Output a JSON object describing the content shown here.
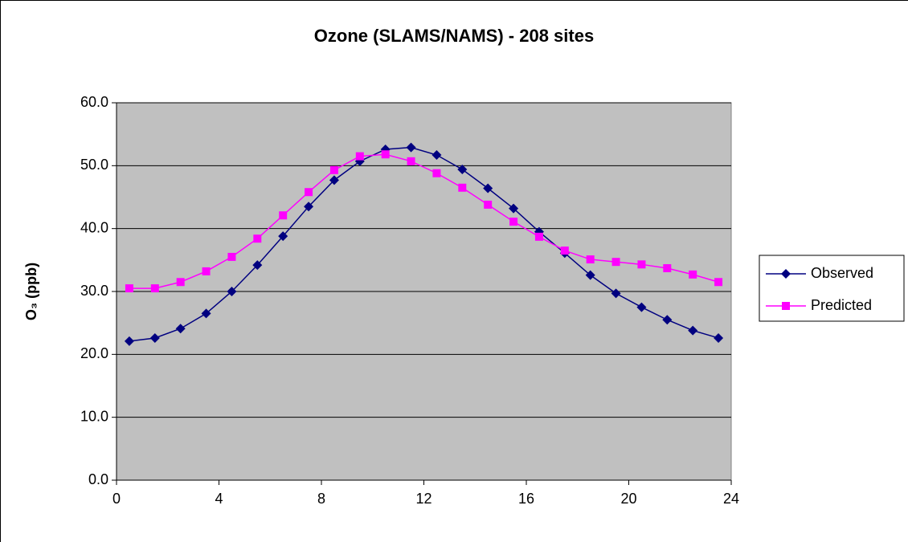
{
  "chart_data": {
    "type": "line",
    "title": "Ozone (SLAMS/NAMS) - 208 sites",
    "y_label": "O₃ (ppb)",
    "x": [
      0.5,
      1.5,
      2.5,
      3.5,
      4.5,
      5.5,
      6.5,
      7.5,
      8.5,
      9.5,
      10.5,
      11.5,
      12.5,
      13.5,
      14.5,
      15.5,
      16.5,
      17.5,
      18.5,
      19.5,
      20.5,
      21.5,
      22.5,
      23.5
    ],
    "series": [
      {
        "name": "Observed",
        "color": "#000080",
        "marker": "diamond",
        "values": [
          22.1,
          22.6,
          24.1,
          26.5,
          30.0,
          34.2,
          38.8,
          43.5,
          47.7,
          50.7,
          52.6,
          52.9,
          51.7,
          49.4,
          46.4,
          43.2,
          39.5,
          36.1,
          32.6,
          29.7,
          27.5,
          25.5,
          23.8,
          22.6
        ]
      },
      {
        "name": "Predicted",
        "color": "#ff00ff",
        "marker": "square",
        "values": [
          30.5,
          30.5,
          31.5,
          33.2,
          35.5,
          38.4,
          42.1,
          45.8,
          49.3,
          51.5,
          51.8,
          50.7,
          48.8,
          46.5,
          43.8,
          41.1,
          38.7,
          36.5,
          35.1,
          34.7,
          34.3,
          33.7,
          32.7,
          31.5
        ]
      }
    ],
    "xlim": [
      0,
      24
    ],
    "xticks": [
      0,
      4,
      8,
      12,
      16,
      20,
      24
    ],
    "ylim": [
      0,
      60
    ],
    "yticks": [
      {
        "value": 0,
        "label": "0.0"
      },
      {
        "value": 10,
        "label": "10.0"
      },
      {
        "value": 20,
        "label": "20.0"
      },
      {
        "value": 30,
        "label": "30.0"
      },
      {
        "value": 40,
        "label": "40.0"
      },
      {
        "value": 50,
        "label": "50.0"
      },
      {
        "value": 60,
        "label": "60.0"
      }
    ],
    "grid": true,
    "plot_background": "#c0c0c0",
    "legend": "right"
  }
}
